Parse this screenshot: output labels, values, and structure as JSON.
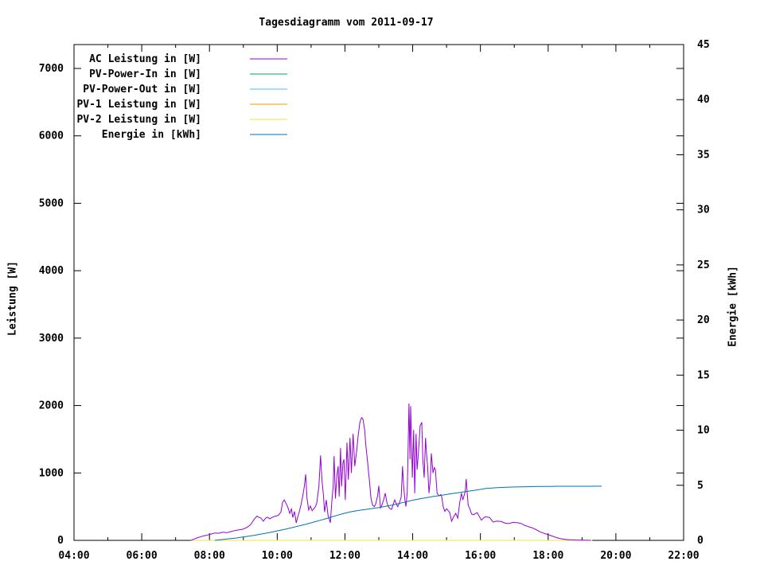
{
  "chart_data": {
    "type": "line",
    "title": "Tagesdiagramm vom 2011-09-17",
    "background": "#ffffff",
    "axis_color": "#000000",
    "grid": false,
    "legend_position": "top-left-inside",
    "x_axis": {
      "label": "",
      "unit": "time",
      "range_hours": [
        4,
        22
      ],
      "major_tick_every_hours": 2,
      "minor_tick_every_hours": 1,
      "tick_labels": [
        "04:00",
        "06:00",
        "08:00",
        "10:00",
        "12:00",
        "14:00",
        "16:00",
        "18:00",
        "20:00",
        "22:00"
      ]
    },
    "y_left": {
      "label": "Leistung [W]",
      "range": [
        0,
        7355
      ],
      "ticks": [
        0,
        1000,
        2000,
        3000,
        4000,
        5000,
        6000,
        7000
      ],
      "tick_labels": [
        "0",
        "1000",
        "2000",
        "3000",
        "4000",
        "5000",
        "6000",
        "7000"
      ]
    },
    "y_right": {
      "label": "Energie [kWh]",
      "range": [
        0,
        45
      ],
      "ticks": [
        0,
        5,
        10,
        15,
        20,
        25,
        30,
        35,
        40,
        45
      ],
      "tick_labels": [
        "0",
        "5",
        "10",
        "15",
        "20",
        "25",
        "30",
        "35",
        "40",
        "45"
      ]
    },
    "series": [
      {
        "name": "AC Leistung in [W]",
        "color": "#9400d3",
        "axis": "left",
        "points": [
          [
            7.45,
            0
          ],
          [
            7.55,
            20
          ],
          [
            7.65,
            40
          ],
          [
            7.75,
            55
          ],
          [
            7.85,
            70
          ],
          [
            7.95,
            80
          ],
          [
            8.05,
            95
          ],
          [
            8.16,
            110
          ],
          [
            8.27,
            105
          ],
          [
            8.39,
            120
          ],
          [
            8.51,
            115
          ],
          [
            8.63,
            130
          ],
          [
            8.75,
            145
          ],
          [
            8.86,
            155
          ],
          [
            8.98,
            165
          ],
          [
            9.1,
            190
          ],
          [
            9.21,
            230
          ],
          [
            9.33,
            320
          ],
          [
            9.4,
            360
          ],
          [
            9.45,
            345
          ],
          [
            9.52,
            330
          ],
          [
            9.59,
            285
          ],
          [
            9.66,
            330
          ],
          [
            9.71,
            345
          ],
          [
            9.78,
            320
          ],
          [
            9.85,
            340
          ],
          [
            9.92,
            355
          ],
          [
            9.99,
            365
          ],
          [
            10.04,
            375
          ],
          [
            10.11,
            420
          ],
          [
            10.16,
            565
          ],
          [
            10.21,
            600
          ],
          [
            10.27,
            540
          ],
          [
            10.32,
            480
          ],
          [
            10.37,
            400
          ],
          [
            10.42,
            465
          ],
          [
            10.46,
            340
          ],
          [
            10.51,
            430
          ],
          [
            10.56,
            260
          ],
          [
            10.61,
            350
          ],
          [
            10.65,
            420
          ],
          [
            10.7,
            520
          ],
          [
            10.75,
            650
          ],
          [
            10.8,
            800
          ],
          [
            10.84,
            980
          ],
          [
            10.88,
            620
          ],
          [
            10.93,
            450
          ],
          [
            10.98,
            510
          ],
          [
            11.03,
            440
          ],
          [
            11.08,
            470
          ],
          [
            11.13,
            500
          ],
          [
            11.17,
            560
          ],
          [
            11.23,
            800
          ],
          [
            11.28,
            1260
          ],
          [
            11.32,
            900
          ],
          [
            11.36,
            700
          ],
          [
            11.4,
            420
          ],
          [
            11.45,
            600
          ],
          [
            11.5,
            370
          ],
          [
            11.55,
            300
          ],
          [
            11.57,
            260
          ],
          [
            11.61,
            550
          ],
          [
            11.65,
            800
          ],
          [
            11.68,
            1250
          ],
          [
            11.72,
            620
          ],
          [
            11.76,
            950
          ],
          [
            11.8,
            1100
          ],
          [
            11.83,
            650
          ],
          [
            11.87,
            1370
          ],
          [
            11.9,
            800
          ],
          [
            11.94,
            1150
          ],
          [
            11.97,
            1200
          ],
          [
            12.01,
            600
          ],
          [
            12.06,
            1450
          ],
          [
            12.1,
            900
          ],
          [
            12.15,
            1520
          ],
          [
            12.19,
            1000
          ],
          [
            12.24,
            1580
          ],
          [
            12.29,
            1100
          ],
          [
            12.34,
            1300
          ],
          [
            12.39,
            1550
          ],
          [
            12.44,
            1750
          ],
          [
            12.49,
            1820
          ],
          [
            12.53,
            1800
          ],
          [
            12.58,
            1650
          ],
          [
            12.62,
            1400
          ],
          [
            12.67,
            1150
          ],
          [
            12.72,
            900
          ],
          [
            12.77,
            620
          ],
          [
            12.82,
            520
          ],
          [
            12.87,
            500
          ],
          [
            12.91,
            545
          ],
          [
            12.96,
            650
          ],
          [
            13.0,
            810
          ],
          [
            13.05,
            480
          ],
          [
            13.09,
            520
          ],
          [
            13.14,
            600
          ],
          [
            13.19,
            700
          ],
          [
            13.24,
            560
          ],
          [
            13.28,
            500
          ],
          [
            13.33,
            470
          ],
          [
            13.38,
            460
          ],
          [
            13.42,
            530
          ],
          [
            13.47,
            600
          ],
          [
            13.52,
            540
          ],
          [
            13.56,
            500
          ],
          [
            13.61,
            560
          ],
          [
            13.66,
            640
          ],
          [
            13.7,
            1100
          ],
          [
            13.73,
            820
          ],
          [
            13.77,
            600
          ],
          [
            13.8,
            500
          ],
          [
            13.84,
            700
          ],
          [
            13.89,
            2030
          ],
          [
            13.92,
            1200
          ],
          [
            13.94,
            1990
          ],
          [
            13.97,
            1400
          ],
          [
            13.99,
            930
          ],
          [
            14.03,
            1640
          ],
          [
            14.06,
            700
          ],
          [
            14.1,
            1580
          ],
          [
            14.13,
            1050
          ],
          [
            14.17,
            1300
          ],
          [
            14.22,
            1700
          ],
          [
            14.27,
            1750
          ],
          [
            14.3,
            1200
          ],
          [
            14.34,
            930
          ],
          [
            14.38,
            1520
          ],
          [
            14.41,
            1280
          ],
          [
            14.44,
            1100
          ],
          [
            14.48,
            700
          ],
          [
            14.52,
            900
          ],
          [
            14.55,
            1290
          ],
          [
            14.6,
            1000
          ],
          [
            14.64,
            1080
          ],
          [
            14.67,
            1050
          ],
          [
            14.72,
            700
          ],
          [
            14.78,
            660
          ],
          [
            14.83,
            680
          ],
          [
            14.86,
            640
          ],
          [
            14.9,
            500
          ],
          [
            14.95,
            430
          ],
          [
            15.0,
            470
          ],
          [
            15.05,
            440
          ],
          [
            15.09,
            420
          ],
          [
            15.15,
            285
          ],
          [
            15.21,
            350
          ],
          [
            15.27,
            400
          ],
          [
            15.33,
            330
          ],
          [
            15.39,
            560
          ],
          [
            15.44,
            700
          ],
          [
            15.48,
            600
          ],
          [
            15.51,
            650
          ],
          [
            15.55,
            720
          ],
          [
            15.58,
            910
          ],
          [
            15.61,
            700
          ],
          [
            15.64,
            520
          ],
          [
            15.68,
            480
          ],
          [
            15.74,
            390
          ],
          [
            15.8,
            380
          ],
          [
            15.86,
            400
          ],
          [
            15.91,
            410
          ],
          [
            15.97,
            350
          ],
          [
            16.03,
            300
          ],
          [
            16.09,
            330
          ],
          [
            16.15,
            350
          ],
          [
            16.21,
            345
          ],
          [
            16.27,
            340
          ],
          [
            16.33,
            300
          ],
          [
            16.38,
            270
          ],
          [
            16.44,
            280
          ],
          [
            16.5,
            285
          ],
          [
            16.56,
            282
          ],
          [
            16.62,
            280
          ],
          [
            16.68,
            265
          ],
          [
            16.74,
            255
          ],
          [
            16.8,
            252
          ],
          [
            16.85,
            250
          ],
          [
            16.91,
            260
          ],
          [
            16.97,
            268
          ],
          [
            17.03,
            265
          ],
          [
            17.09,
            262
          ],
          [
            17.15,
            255
          ],
          [
            17.2,
            250
          ],
          [
            17.26,
            235
          ],
          [
            17.32,
            220
          ],
          [
            17.38,
            210
          ],
          [
            17.44,
            200
          ],
          [
            17.5,
            190
          ],
          [
            17.56,
            180
          ],
          [
            17.62,
            165
          ],
          [
            17.68,
            150
          ],
          [
            17.73,
            135
          ],
          [
            17.79,
            120
          ],
          [
            17.85,
            110
          ],
          [
            17.9,
            100
          ],
          [
            17.97,
            90
          ],
          [
            18.03,
            80
          ],
          [
            18.09,
            70
          ],
          [
            18.14,
            60
          ],
          [
            18.2,
            50
          ],
          [
            18.26,
            40
          ],
          [
            18.33,
            30
          ],
          [
            18.4,
            22
          ],
          [
            18.5,
            15
          ],
          [
            18.6,
            10
          ],
          [
            18.7,
            8
          ],
          [
            18.8,
            6
          ],
          [
            18.9,
            5
          ],
          [
            19.0,
            4
          ],
          [
            19.1,
            3
          ],
          [
            19.2,
            1
          ],
          [
            19.27,
            0
          ]
        ]
      },
      {
        "name": "PV-Power-In in [W]",
        "color": "#009e73",
        "axis": "left",
        "points": [
          [
            7.45,
            0
          ],
          [
            19.3,
            0
          ]
        ]
      },
      {
        "name": "PV-Power-Out in [W]",
        "color": "#56b4e9",
        "axis": "left",
        "points": [
          [
            7.45,
            0
          ],
          [
            19.3,
            0
          ]
        ]
      },
      {
        "name": "PV-1 Leistung in [W]",
        "color": "#e69f00",
        "axis": "left",
        "points": [
          [
            7.45,
            0
          ],
          [
            19.3,
            0
          ]
        ]
      },
      {
        "name": "PV-2 Leistung in [W]",
        "color": "#f0e442",
        "axis": "left",
        "points": [
          [
            7.45,
            0
          ],
          [
            19.3,
            0
          ]
        ]
      },
      {
        "name": "Energie in [kWh]",
        "color": "#0072b2",
        "axis": "right",
        "points": [
          [
            8.16,
            0.0
          ],
          [
            8.3,
            0.05
          ],
          [
            8.45,
            0.1
          ],
          [
            8.63,
            0.16
          ],
          [
            8.8,
            0.22
          ],
          [
            8.98,
            0.3
          ],
          [
            9.15,
            0.38
          ],
          [
            9.33,
            0.46
          ],
          [
            9.5,
            0.56
          ],
          [
            9.68,
            0.66
          ],
          [
            9.85,
            0.76
          ],
          [
            10.04,
            0.88
          ],
          [
            10.21,
            1.0
          ],
          [
            10.39,
            1.12
          ],
          [
            10.56,
            1.25
          ],
          [
            10.74,
            1.38
          ],
          [
            10.91,
            1.52
          ],
          [
            11.09,
            1.67
          ],
          [
            11.27,
            1.82
          ],
          [
            11.45,
            1.98
          ],
          [
            11.62,
            2.14
          ],
          [
            11.8,
            2.3
          ],
          [
            11.97,
            2.45
          ],
          [
            12.15,
            2.58
          ],
          [
            12.33,
            2.68
          ],
          [
            12.51,
            2.77
          ],
          [
            12.68,
            2.84
          ],
          [
            12.86,
            2.92
          ],
          [
            13.04,
            3.0
          ],
          [
            13.21,
            3.1
          ],
          [
            13.39,
            3.2
          ],
          [
            13.56,
            3.32
          ],
          [
            13.74,
            3.45
          ],
          [
            13.92,
            3.58
          ],
          [
            14.09,
            3.7
          ],
          [
            14.27,
            3.8
          ],
          [
            14.45,
            3.9
          ],
          [
            14.62,
            3.99
          ],
          [
            14.8,
            4.07
          ],
          [
            14.97,
            4.15
          ],
          [
            15.15,
            4.24
          ],
          [
            15.33,
            4.32
          ],
          [
            15.5,
            4.4
          ],
          [
            15.68,
            4.48
          ],
          [
            15.86,
            4.56
          ],
          [
            16.03,
            4.64
          ],
          [
            16.15,
            4.7
          ],
          [
            16.33,
            4.75
          ],
          [
            16.5,
            4.78
          ],
          [
            16.68,
            4.81
          ],
          [
            16.85,
            4.83
          ],
          [
            17.03,
            4.85
          ],
          [
            17.2,
            4.86
          ],
          [
            17.38,
            4.87
          ],
          [
            17.56,
            4.88
          ],
          [
            17.73,
            4.89
          ],
          [
            17.91,
            4.9
          ],
          [
            18.09,
            4.9
          ],
          [
            18.26,
            4.91
          ],
          [
            18.61,
            4.91
          ],
          [
            18.96,
            4.91
          ],
          [
            19.31,
            4.91
          ],
          [
            19.58,
            4.92
          ]
        ]
      }
    ],
    "legend": {
      "entries": [
        {
          "label": "AC Leistung in [W]",
          "color": "#9400d3"
        },
        {
          "label": "PV-Power-In in [W]",
          "color": "#009e73"
        },
        {
          "label": "PV-Power-Out in [W]",
          "color": "#56b4e9"
        },
        {
          "label": "PV-1 Leistung in [W]",
          "color": "#e69f00"
        },
        {
          "label": "PV-2 Leistung in [W]",
          "color": "#f0e442"
        },
        {
          "label": "Energie in [kWh]",
          "color": "#0072b2"
        }
      ]
    }
  }
}
